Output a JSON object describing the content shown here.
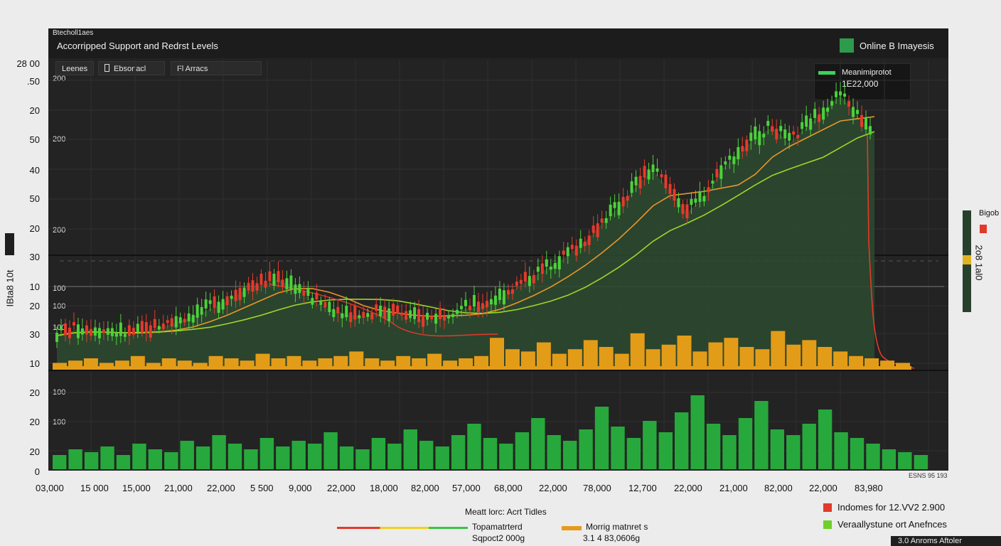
{
  "chart_data": {
    "type": "bar",
    "header_small": "Btecholl1aes",
    "title": "Accorripped Support and Redrst Levels",
    "right_badge": "Online B Imayesis",
    "tabs": [
      "Leenes",
      "Ebsonacl",
      "Fl Arracs"
    ],
    "tooltip": {
      "label": "Meanimiprotot",
      "value": "1E22,000"
    },
    "corner_label": "28 00",
    "y_labels": [
      ".50",
      "20",
      "50",
      "40",
      "50",
      "20",
      "30",
      "10",
      "20",
      "30",
      "10",
      "20",
      "20",
      "20",
      "0"
    ],
    "inner_labels": [
      "200",
      "200",
      "200",
      "100",
      "100",
      "100",
      "100",
      "100"
    ],
    "x_labels": [
      "03,000",
      "15 000",
      "15,000",
      "21,000",
      "22,000",
      "5 500",
      "9,000",
      "22,000",
      "18,000",
      "82,000",
      "57,000",
      "68,000",
      "22,000",
      "78,000",
      "12,700",
      "22,000",
      "21,000",
      "82,000",
      "22,000",
      "83,980"
    ],
    "x_corner": "ESNS 95 193",
    "left_axis_label": "IBta8 10t",
    "right_label_top": "Bigob",
    "right_axis_label": "2o8 1al0",
    "legend_title": "Meatt lorc: Acrt Tidles",
    "legend": [
      {
        "label": "Topamatrterd",
        "sub": "Sqpoct2 000g",
        "color": "#e23a2c"
      },
      {
        "label": "Morrig matnret s",
        "sub": "3.1 4 83,0606g",
        "color": "#e59a1c"
      }
    ],
    "right_legend": [
      {
        "label": "Indomes for 12.VV2 2.900",
        "color": "#e23a2c"
      },
      {
        "label": "Veraallystune ort Anefnces",
        "color": "#6fcf2a"
      }
    ],
    "bottom_tab": "3.0 Anroms Aftoler",
    "colors": {
      "up": "#4bd23a",
      "down": "#e63a2b",
      "volume": "#e39c18",
      "volume_lower": "#27a83c",
      "ma_fast": "#e8962a",
      "ma_slow": "#9fd62a",
      "resistance": "#e33a2b",
      "area": "#2d4a2f"
    },
    "price_path": [
      12,
      14,
      14,
      13,
      12,
      13,
      15,
      17,
      19,
      22,
      25,
      29,
      31,
      33,
      30,
      25,
      22,
      20,
      19,
      21,
      20,
      18,
      18,
      20,
      22,
      23,
      26,
      30,
      34,
      38,
      42,
      47,
      54,
      60,
      68,
      74,
      66,
      58,
      64,
      74,
      80,
      86,
      90,
      84,
      90,
      96,
      102,
      94,
      88
    ],
    "volume_upper": [
      3,
      4,
      5,
      3,
      4,
      6,
      3,
      5,
      4,
      3,
      6,
      5,
      4,
      7,
      5,
      6,
      4,
      5,
      6,
      8,
      5,
      4,
      6,
      5,
      7,
      4,
      5,
      6,
      14,
      9,
      8,
      12,
      7,
      9,
      13,
      10,
      7,
      16,
      9,
      11,
      15,
      8,
      12,
      14,
      10,
      9,
      17,
      11,
      13,
      10,
      8,
      6,
      5,
      4,
      3
    ],
    "volume_lower": [
      5,
      7,
      6,
      8,
      5,
      9,
      7,
      6,
      10,
      8,
      12,
      9,
      7,
      11,
      8,
      10,
      9,
      13,
      8,
      7,
      11,
      9,
      14,
      10,
      8,
      12,
      16,
      11,
      9,
      13,
      18,
      12,
      10,
      14,
      22,
      15,
      11,
      17,
      13,
      20,
      26,
      16,
      12,
      18,
      24,
      14,
      12,
      16,
      21,
      13,
      11,
      9,
      7,
      6,
      5
    ]
  }
}
